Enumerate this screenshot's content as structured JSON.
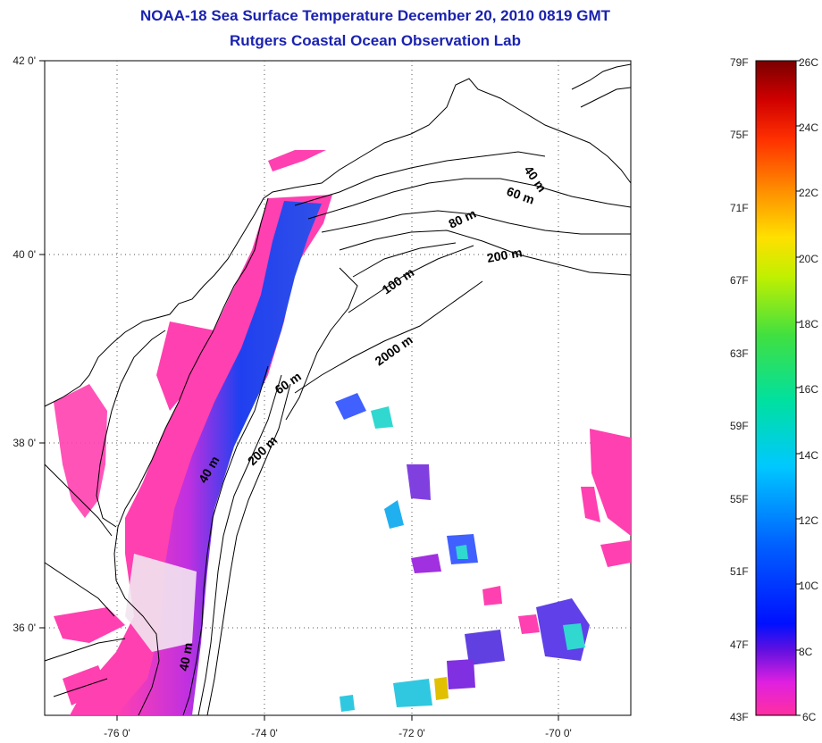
{
  "header": {
    "title": "NOAA-18 Sea Surface Temperature December 20, 2010 0819 GMT",
    "subtitle": "Rutgers Coastal Ocean Observation Lab"
  },
  "axes": {
    "lat_labels": [
      "42 0'",
      "40 0'",
      "38 0'",
      "36 0'"
    ],
    "lon_labels": [
      "-76 0'",
      "-74 0'",
      "-72 0'",
      "-70 0'"
    ]
  },
  "contours": [
    {
      "label": "40 m"
    },
    {
      "label": "60 m"
    },
    {
      "label": "80 m"
    },
    {
      "label": "200 m"
    },
    {
      "label": "100 m"
    },
    {
      "label": "2000 m"
    },
    {
      "label": "60 m"
    },
    {
      "label": "200 m"
    },
    {
      "label": "40 m"
    },
    {
      "label": "40 m"
    }
  ],
  "colorbar": {
    "fahrenheit": [
      "79F",
      "75F",
      "71F",
      "67F",
      "63F",
      "59F",
      "55F",
      "51F",
      "47F",
      "43F"
    ],
    "celsius": [
      "26C",
      "24C",
      "22C",
      "20C",
      "18C",
      "16C",
      "14C",
      "12C",
      "10C",
      "8C",
      "6C"
    ]
  },
  "colors": {
    "title": "#1a22b0",
    "land_outline": "#000000",
    "warm_max": "#7a0000",
    "cold_min": "#ff2fa0",
    "cold_blue": "#1a32f0"
  }
}
